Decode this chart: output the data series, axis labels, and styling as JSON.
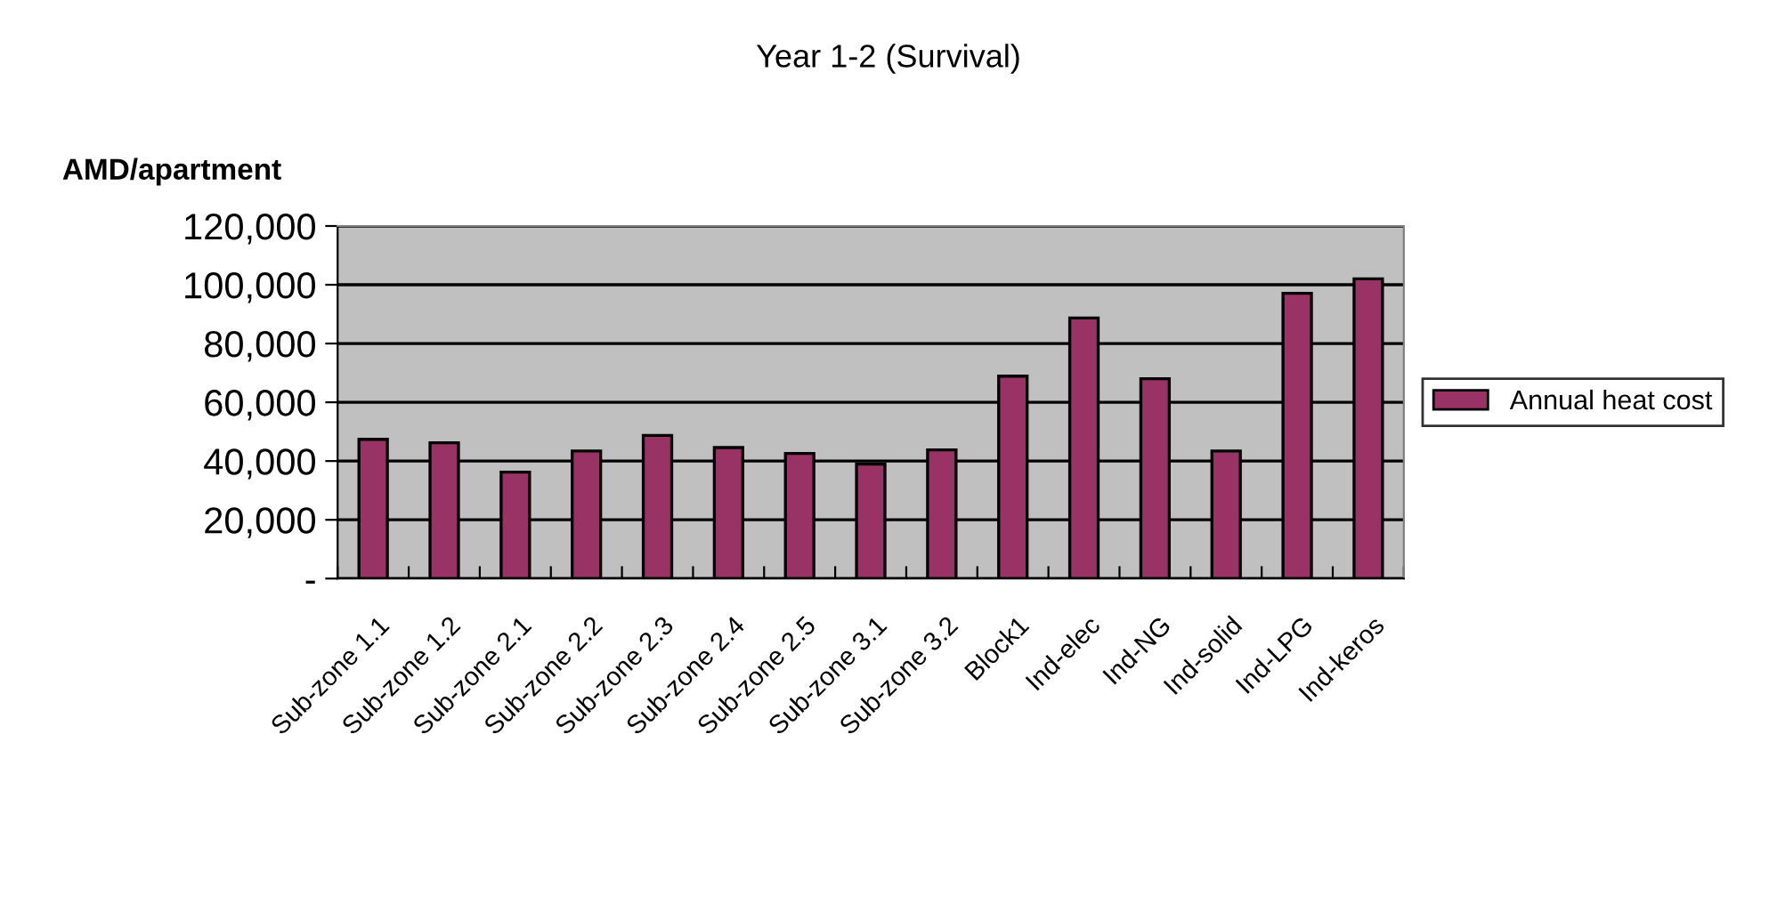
{
  "chart_data": {
    "type": "bar",
    "title": "Year 1-2 (Survival)",
    "ylabel": "AMD/apartment",
    "categories": [
      "Sub-zone 1.1",
      "Sub-zone 1.2",
      "Sub-zone 2.1",
      "Sub-zone 2.2",
      "Sub-zone 2.3",
      "Sub-zone 2.4",
      "Sub-zone 2.5",
      "Sub-zone 3.1",
      "Sub-zone 3.2",
      "Block1",
      "Ind-elec",
      "Ind-NG",
      "Ind-solid",
      "Ind-LPG",
      "Ind-keros"
    ],
    "series": [
      {
        "name": "Annual heat cost",
        "color": "#993366",
        "values": [
          47400,
          46200,
          36200,
          43400,
          48700,
          44600,
          42600,
          39000,
          43800,
          68900,
          88700,
          68000,
          43400,
          97100,
          102000
        ]
      }
    ],
    "ylim": [
      0,
      120000
    ],
    "yticks": [
      {
        "value": 0,
        "label": "-"
      },
      {
        "value": 20000,
        "label": "20,000"
      },
      {
        "value": 40000,
        "label": "40,000"
      },
      {
        "value": 60000,
        "label": "60,000"
      },
      {
        "value": 80000,
        "label": "80,000"
      },
      {
        "value": 100000,
        "label": "100,000"
      },
      {
        "value": 120000,
        "label": "120,000"
      }
    ],
    "grid": "y",
    "legend": "right"
  }
}
